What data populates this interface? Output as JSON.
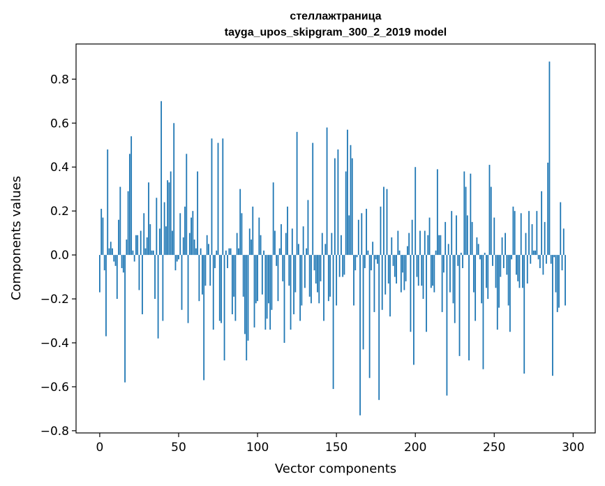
{
  "chart_data": {
    "type": "bar",
    "title": "стеллажтраница",
    "subtitle": "tayga_upos_skipgram_300_2_2019 model",
    "xlabel": "Vector components",
    "ylabel": "Components values",
    "xlim": [
      -15,
      314
    ],
    "ylim": [
      -0.81,
      0.96
    ],
    "xticks": [
      0,
      50,
      100,
      150,
      200,
      250,
      300
    ],
    "yticks": [
      -0.8,
      -0.6,
      -0.4,
      -0.2,
      0.0,
      0.2,
      0.4,
      0.6,
      0.8
    ],
    "ytick_labels": [
      "−0.8",
      "−0.6",
      "−0.4",
      "−0.2",
      "0.0",
      "0.2",
      "0.4",
      "0.6",
      "0.8"
    ],
    "bar_color": "#1f77b4",
    "grid": false,
    "legend": "none",
    "values": [
      -0.17,
      0.21,
      0.17,
      -0.07,
      -0.37,
      0.48,
      0.03,
      0.06,
      0.03,
      -0.03,
      -0.05,
      -0.2,
      0.16,
      0.31,
      -0.06,
      -0.08,
      -0.58,
      0.07,
      0.29,
      0.46,
      0.54,
      0.02,
      -0.03,
      0.09,
      0.09,
      -0.16,
      0.11,
      -0.27,
      0.19,
      0.03,
      0.08,
      0.33,
      0.14,
      0.02,
      0.02,
      -0.2,
      0.26,
      -0.38,
      0.12,
      0.7,
      -0.3,
      0.24,
      0.13,
      0.34,
      0.33,
      0.38,
      0.11,
      0.6,
      -0.07,
      -0.03,
      -0.02,
      0.19,
      -0.25,
      0.08,
      0.22,
      0.46,
      -0.31,
      0.1,
      0.17,
      0.2,
      0.07,
      0.03,
      0.38,
      -0.21,
      0.03,
      -0.18,
      -0.57,
      -0.14,
      0.09,
      0.05,
      -0.14,
      0.53,
      -0.34,
      -0.06,
      0.02,
      0.51,
      -0.3,
      -0.31,
      0.53,
      -0.48,
      0.02,
      -0.06,
      0.03,
      0.03,
      -0.27,
      -0.19,
      -0.3,
      0.1,
      0.03,
      0.3,
      0.19,
      -0.19,
      -0.36,
      -0.48,
      -0.39,
      0.12,
      0.07,
      0.22,
      -0.33,
      -0.22,
      -0.21,
      0.17,
      0.09,
      -0.18,
      0.02,
      -0.34,
      -0.29,
      -0.22,
      -0.34,
      -0.25,
      0.33,
      0.11,
      -0.05,
      -0.21,
      0.03,
      0.14,
      -0.12,
      -0.4,
      0.1,
      0.22,
      -0.14,
      -0.34,
      0.12,
      -0.27,
      -0.17,
      0.56,
      0.05,
      -0.3,
      -0.23,
      0.13,
      -0.15,
      0.03,
      0.25,
      -0.19,
      -0.22,
      0.51,
      -0.07,
      -0.13,
      -0.17,
      -0.22,
      -0.12,
      0.1,
      -0.3,
      0.05,
      0.58,
      -0.21,
      -0.19,
      0.1,
      -0.61,
      0.44,
      -0.23,
      0.48,
      -0.1,
      0.09,
      -0.1,
      -0.09,
      0.38,
      0.57,
      0.18,
      0.5,
      0.44,
      -0.23,
      -0.07,
      -0.01,
      0.16,
      -0.73,
      0.19,
      -0.43,
      -0.06,
      0.21,
      0.02,
      -0.56,
      -0.07,
      0.06,
      -0.26,
      -0.02,
      -0.04,
      -0.66,
      0.22,
      -0.25,
      0.31,
      -0.18,
      0.3,
      -0.13,
      -0.28,
      0.08,
      -0.05,
      -0.1,
      -0.13,
      0.11,
      0.02,
      -0.17,
      -0.08,
      -0.16,
      -0.12,
      0.04,
      0.1,
      -0.35,
      0.16,
      -0.5,
      0.4,
      -0.1,
      -0.14,
      0.11,
      -0.14,
      -0.2,
      0.11,
      -0.35,
      0.09,
      0.17,
      -0.15,
      -0.14,
      -0.17,
      0.02,
      0.39,
      0.09,
      0.09,
      -0.26,
      -0.08,
      0.15,
      -0.64,
      0.05,
      -0.17,
      0.2,
      -0.22,
      -0.31,
      0.18,
      -0.05,
      -0.46,
      0.01,
      -0.06,
      0.38,
      0.31,
      0.18,
      -0.48,
      0.37,
      0.15,
      -0.17,
      -0.3,
      0.08,
      0.05,
      -0.02,
      -0.22,
      -0.52,
      0.01,
      -0.15,
      -0.2,
      0.41,
      0.31,
      -0.05,
      0.17,
      -0.15,
      -0.34,
      -0.24,
      -0.1,
      0.08,
      -0.06,
      0.1,
      -0.09,
      -0.23,
      -0.35,
      -0.02,
      0.22,
      0.2,
      -0.09,
      -0.12,
      -0.15,
      0.19,
      -0.15,
      -0.54,
      0.1,
      -0.13,
      0.2,
      -0.04,
      0.14,
      0.02,
      0.02,
      0.2,
      -0.02,
      -0.06,
      0.29,
      -0.09,
      0.15,
      -0.04,
      0.42,
      0.88,
      -0.04,
      -0.55,
      -0.01,
      -0.17,
      -0.26,
      -0.24,
      0.24,
      -0.07,
      0.12,
      -0.23
    ]
  }
}
